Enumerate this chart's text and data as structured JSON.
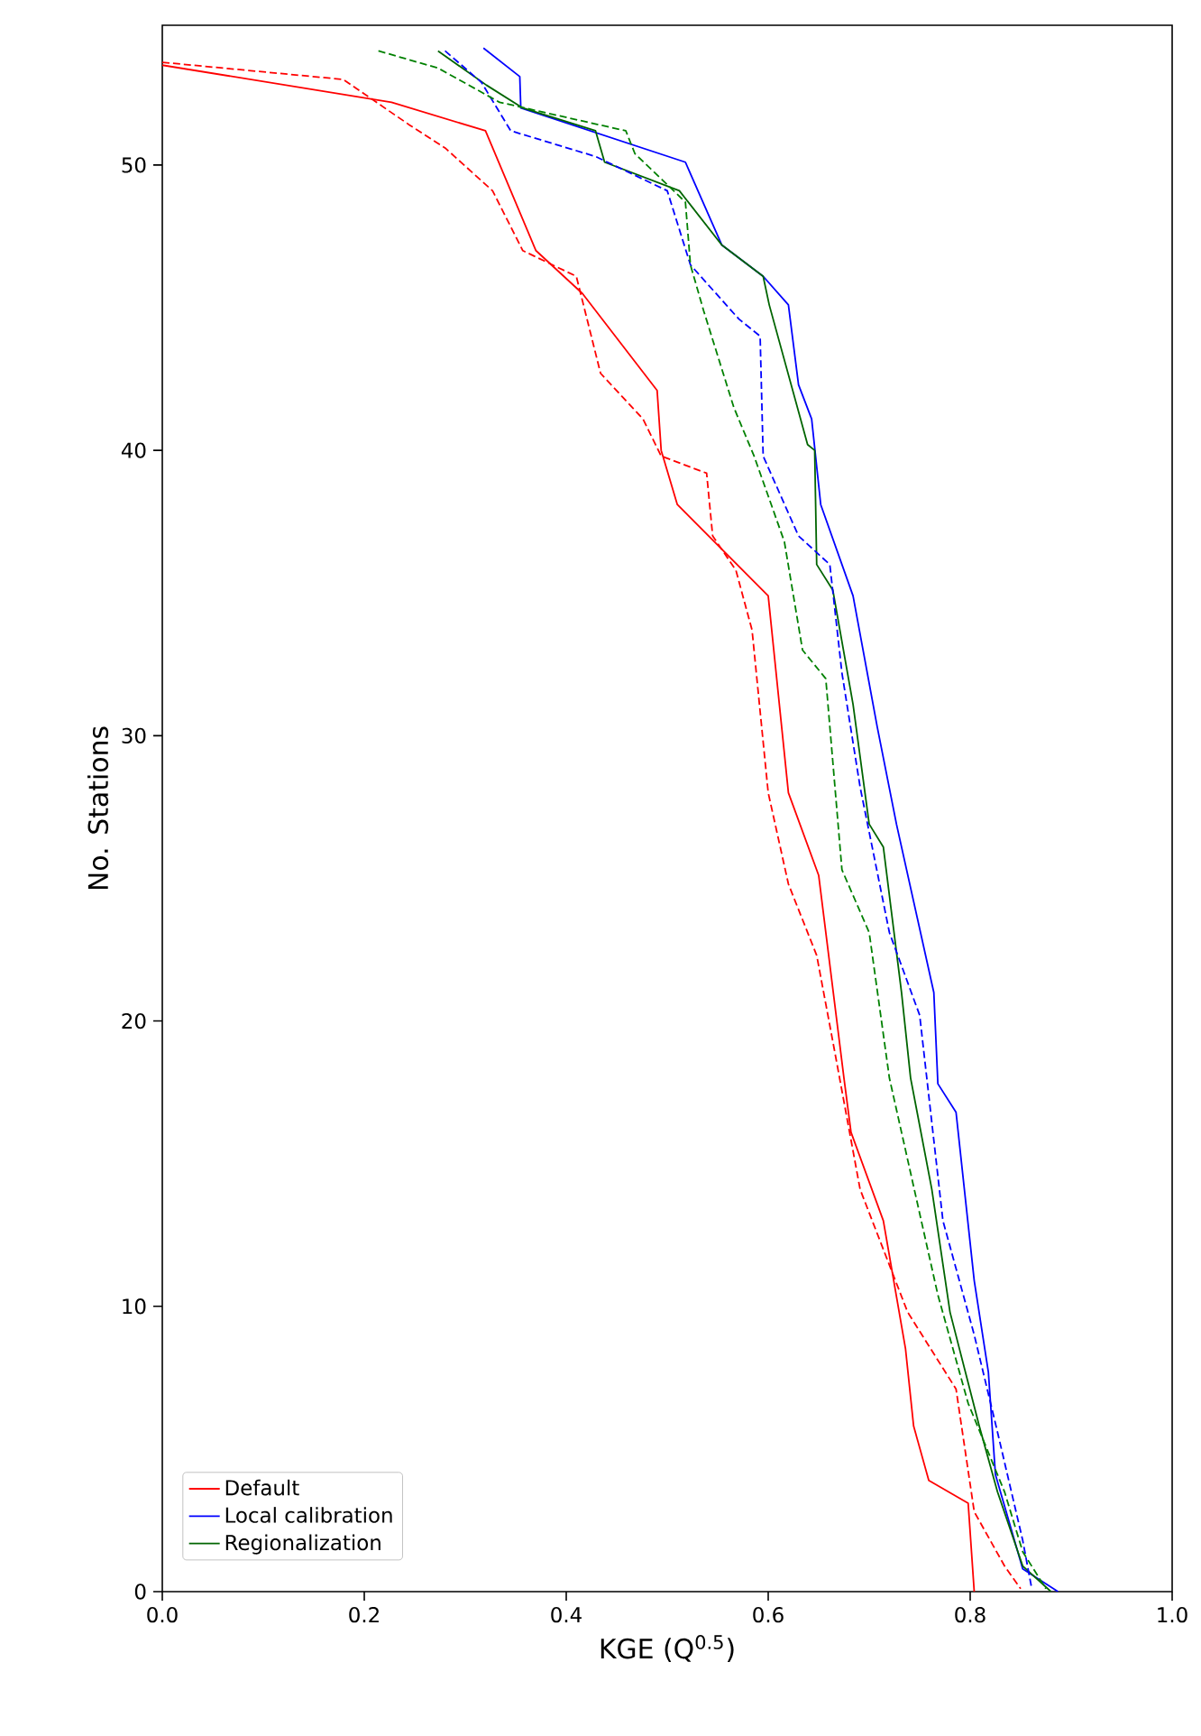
{
  "chart_data": {
    "type": "line",
    "xlabel": "KGE (Q$^{0.5}$)",
    "ylabel": "No. Stations",
    "xlim": [
      0,
      1
    ],
    "ylim": [
      0,
      54.9
    ],
    "xticks": [
      {
        "value": 0,
        "label": "0.0"
      },
      {
        "value": 0.2,
        "label": "0.2"
      },
      {
        "value": 0.4,
        "label": "0.4"
      },
      {
        "value": 0.6,
        "label": "0.6"
      },
      {
        "value": 0.8,
        "label": "0.8"
      },
      {
        "value": 1,
        "label": "1.0"
      }
    ],
    "yticks": [
      0,
      10,
      20,
      30,
      40,
      50
    ],
    "grid": false,
    "legend": "bottom left",
    "marker": "none",
    "series": [
      {
        "name": "Default",
        "color": "#ff0000",
        "line_style": "solid",
        "x": [
          0.0,
          0.227,
          0.32,
          0.37,
          0.416,
          0.49,
          0.494,
          0.51,
          0.6,
          0.62,
          0.65,
          0.675,
          0.682,
          0.714,
          0.736,
          0.744,
          0.759,
          0.798,
          0.804
        ],
        "values": [
          53.5,
          52.2,
          51.2,
          47.0,
          45.5,
          42.1,
          40.0,
          38.1,
          34.9,
          28.0,
          25.1,
          18.0,
          16.1,
          13.0,
          8.5,
          5.8,
          3.9,
          3.1,
          0
        ]
      },
      {
        "name": "Local calibration",
        "color": "#0000ff",
        "line_style": "solid",
        "x": [
          0.318,
          0.354,
          0.355,
          0.518,
          0.554,
          0.595,
          0.62,
          0.63,
          0.643,
          0.652,
          0.684,
          0.708,
          0.727,
          0.764,
          0.768,
          0.786,
          0.804,
          0.818,
          0.825,
          0.852,
          0.887
        ],
        "values": [
          54.1,
          53.1,
          52.0,
          50.1,
          47.2,
          46.1,
          45.1,
          42.3,
          41.1,
          38.1,
          34.9,
          30.3,
          26.9,
          21.0,
          17.8,
          16.8,
          10.9,
          7.7,
          4.1,
          0.8,
          0
        ]
      },
      {
        "name": "Regionalization",
        "color": "#006400",
        "line_style": "solid",
        "x": [
          0.273,
          0.321,
          0.357,
          0.429,
          0.438,
          0.512,
          0.554,
          0.595,
          0.601,
          0.639,
          0.646,
          0.648,
          0.664,
          0.684,
          0.7,
          0.714,
          0.732,
          0.741,
          0.762,
          0.78,
          0.809,
          0.827,
          0.852,
          0.88
        ],
        "values": [
          54.0,
          52.8,
          52.0,
          51.2,
          50.1,
          49.1,
          47.2,
          46.1,
          45.1,
          40.2,
          40.0,
          36.0,
          35.1,
          31.1,
          26.9,
          26.1,
          21.0,
          18.0,
          14.1,
          9.8,
          5.8,
          3.5,
          0.9,
          0
        ]
      },
      {
        "color": "#ff0000",
        "line_style": "dashed",
        "x": [
          0.0,
          0.179,
          0.245,
          0.28,
          0.327,
          0.357,
          0.41,
          0.434,
          0.476,
          0.494,
          0.539,
          0.545,
          0.568,
          0.584,
          0.6,
          0.62,
          0.648,
          0.666,
          0.691,
          0.738,
          0.786,
          0.804,
          0.834,
          0.85
        ],
        "values": [
          53.6,
          53.0,
          51.4,
          50.6,
          49.1,
          47.0,
          46.1,
          42.7,
          41.1,
          39.8,
          39.2,
          37.0,
          35.8,
          33.7,
          28.0,
          24.8,
          22.3,
          18.9,
          14.1,
          9.8,
          7.1,
          2.8,
          0.9,
          0.1
        ]
      },
      {
        "color": "#0000ff",
        "line_style": "dashed",
        "x": [
          0.28,
          0.316,
          0.345,
          0.429,
          0.5,
          0.523,
          0.571,
          0.592,
          0.595,
          0.63,
          0.661,
          0.673,
          0.691,
          0.72,
          0.75,
          0.773,
          0.804,
          0.827,
          0.852,
          0.861
        ],
        "values": [
          54.0,
          52.9,
          51.2,
          50.3,
          49.1,
          46.5,
          44.6,
          44.0,
          39.8,
          37.0,
          36.0,
          32.2,
          28.2,
          23.1,
          20.2,
          13.0,
          9.0,
          5.6,
          1.8,
          0.1
        ]
      },
      {
        "color": "#008000",
        "line_style": "dashed",
        "x": [
          0.214,
          0.273,
          0.334,
          0.459,
          0.468,
          0.518,
          0.523,
          0.536,
          0.566,
          0.586,
          0.616,
          0.634,
          0.657,
          0.673,
          0.7,
          0.72,
          0.732,
          0.768,
          0.798,
          0.834,
          0.852,
          0.875
        ],
        "values": [
          54.0,
          53.4,
          52.2,
          51.2,
          50.4,
          48.7,
          46.5,
          44.9,
          41.5,
          39.8,
          36.8,
          33.0,
          32.0,
          25.3,
          23.1,
          18.0,
          16.1,
          10.4,
          6.6,
          3.5,
          1.4,
          0.1
        ]
      }
    ]
  }
}
